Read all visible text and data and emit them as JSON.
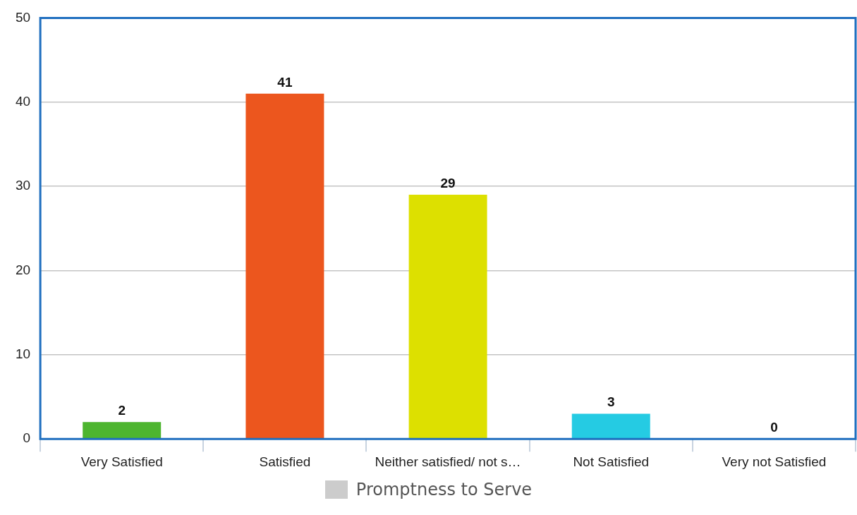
{
  "chart_data": {
    "type": "bar",
    "categories": [
      "Very Satisfied",
      "Satisfied",
      "Neither satisfied/ not s…",
      "Not Satisfied",
      "Very not Satisfied"
    ],
    "series": [
      {
        "name": "Promptness to Serve",
        "color": "#cccccc",
        "colors": [
          "#4db52f",
          "#ec561e",
          "#dde000",
          "#25cbe3",
          "#8e44ad"
        ],
        "values": [
          2,
          41,
          29,
          3,
          0
        ]
      }
    ],
    "ylim": [
      0,
      50
    ],
    "yticks": [
      0,
      10,
      20,
      30,
      40,
      50
    ],
    "grid": "y",
    "legend": "bottom",
    "data_labels": true
  }
}
